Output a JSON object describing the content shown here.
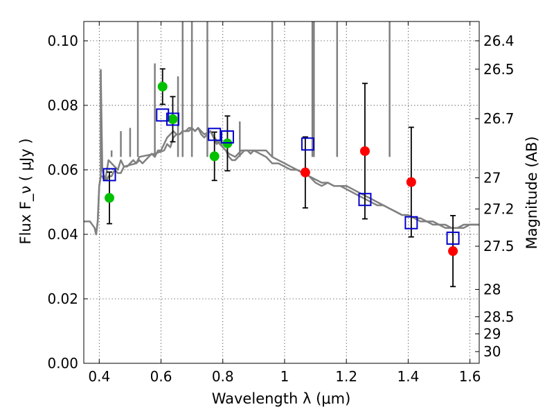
{
  "chart_data": {
    "type": "scatter",
    "xlabel": "Wavelength  λ (μm)",
    "ylabel": "Flux  F_ν  ( μJy )",
    "y2label": "Magnitude (AB)",
    "xlim": [
      0.35,
      1.63
    ],
    "ylim": [
      0.0,
      0.106
    ],
    "grid": true,
    "x_ticks": [
      {
        "value": 0.4,
        "label": "0.4"
      },
      {
        "value": 0.6,
        "label": "0.6"
      },
      {
        "value": 0.8,
        "label": "0.8"
      },
      {
        "value": 1.0,
        "label": "1"
      },
      {
        "value": 1.2,
        "label": "1.2"
      },
      {
        "value": 1.4,
        "label": "1.4"
      },
      {
        "value": 1.6,
        "label": "1.6"
      }
    ],
    "y_ticks": [
      {
        "value": 0.0,
        "label": "0.00"
      },
      {
        "value": 0.02,
        "label": "0.02"
      },
      {
        "value": 0.04,
        "label": "0.04"
      },
      {
        "value": 0.06,
        "label": "0.06"
      },
      {
        "value": 0.08,
        "label": "0.08"
      },
      {
        "value": 0.1,
        "label": "0.10"
      }
    ],
    "y2_ticks": [
      {
        "value": 26.4,
        "label": "26.4"
      },
      {
        "value": 26.5,
        "label": "26.5"
      },
      {
        "value": 26.7,
        "label": "26.7"
      },
      {
        "value": 27.0,
        "label": "27"
      },
      {
        "value": 27.2,
        "label": "27.2"
      },
      {
        "value": 27.5,
        "label": "27.5"
      },
      {
        "value": 28.0,
        "label": "28"
      },
      {
        "value": 28.5,
        "label": "28.5"
      },
      {
        "value": 29.0,
        "label": "29"
      },
      {
        "value": 30.0,
        "label": "30"
      }
    ],
    "series": [
      {
        "kind": "line",
        "color": "#808080",
        "x": [
          0.35,
          0.37,
          0.385,
          0.39,
          0.395,
          0.4,
          0.405,
          0.41,
          0.415,
          0.42,
          0.425,
          0.43,
          0.44,
          0.45,
          0.46,
          0.47,
          0.48,
          0.49,
          0.5,
          0.51,
          0.52,
          0.53,
          0.54,
          0.55,
          0.56,
          0.57,
          0.58,
          0.59,
          0.6,
          0.61,
          0.62,
          0.63,
          0.64,
          0.65,
          0.66,
          0.67,
          0.68,
          0.69,
          0.7,
          0.71,
          0.72,
          0.73,
          0.74,
          0.75,
          0.76,
          0.77,
          0.78,
          0.79,
          0.8,
          0.81,
          0.82,
          0.83,
          0.84,
          0.85,
          0.86,
          0.87,
          0.88,
          0.89,
          0.9,
          0.92,
          0.94,
          0.96,
          0.98,
          1.0,
          1.02,
          1.04,
          1.06,
          1.08,
          1.1,
          1.12,
          1.14,
          1.16,
          1.18,
          1.2,
          1.22,
          1.24,
          1.26,
          1.28,
          1.3,
          1.32,
          1.34,
          1.36,
          1.38,
          1.4,
          1.42,
          1.44,
          1.46,
          1.48,
          1.5,
          1.52,
          1.54,
          1.56,
          1.58,
          1.6,
          1.63
        ],
        "y": [
          0.044,
          0.044,
          0.042,
          0.04,
          0.044,
          0.055,
          0.058,
          0.058,
          0.057,
          0.058,
          0.057,
          0.058,
          0.058,
          0.06,
          0.059,
          0.059,
          0.061,
          0.061,
          0.062,
          0.063,
          0.062,
          0.063,
          0.062,
          0.063,
          0.064,
          0.065,
          0.064,
          0.066,
          0.066,
          0.068,
          0.07,
          0.071,
          0.072,
          0.071,
          0.071,
          0.072,
          0.072,
          0.073,
          0.073,
          0.072,
          0.073,
          0.071,
          0.07,
          0.071,
          0.072,
          0.07,
          0.068,
          0.069,
          0.067,
          0.066,
          0.064,
          0.063,
          0.063,
          0.064,
          0.065,
          0.066,
          0.066,
          0.065,
          0.066,
          0.065,
          0.064,
          0.062,
          0.062,
          0.061,
          0.06,
          0.06,
          0.059,
          0.058,
          0.056,
          0.055,
          0.056,
          0.055,
          0.055,
          0.054,
          0.053,
          0.052,
          0.051,
          0.05,
          0.049,
          0.049,
          0.048,
          0.047,
          0.046,
          0.046,
          0.045,
          0.044,
          0.044,
          0.043,
          0.043,
          0.042,
          0.042,
          0.042,
          0.042,
          0.043,
          0.043
        ]
      },
      {
        "kind": "line",
        "color": "#808080",
        "x": [
          0.385,
          0.39,
          0.395,
          0.4,
          0.405,
          0.405,
          0.41,
          0.415,
          0.42,
          0.43,
          0.44,
          0.45,
          0.46,
          0.47,
          0.48,
          0.52,
          0.53,
          0.58,
          0.61,
          0.62,
          0.63,
          0.64,
          0.65,
          0.66,
          0.67,
          0.68,
          0.69,
          0.7,
          0.71,
          0.72,
          0.73,
          0.74,
          0.76,
          0.78,
          0.8,
          0.82,
          0.84,
          0.86,
          0.88,
          0.9,
          0.92,
          0.94,
          0.96,
          0.98,
          1.0,
          1.02,
          1.04,
          1.06,
          1.08,
          1.1,
          1.12,
          1.14,
          1.16,
          1.18,
          1.2,
          1.22,
          1.24,
          1.26,
          1.28,
          1.3,
          1.32,
          1.34,
          1.36,
          1.38,
          1.4,
          1.42,
          1.44,
          1.46,
          1.48,
          1.5,
          1.52,
          1.54,
          1.56,
          1.58,
          1.6,
          1.63
        ],
        "y": [
          0.042,
          0.04,
          0.044,
          0.055,
          0.058,
          0.091,
          0.06,
          0.058,
          0.057,
          0.063,
          0.062,
          0.061,
          0.06,
          0.063,
          0.061,
          0.062,
          0.064,
          0.065,
          0.066,
          0.068,
          0.067,
          0.07,
          0.071,
          0.071,
          0.072,
          0.072,
          0.072,
          0.073,
          0.072,
          0.073,
          0.072,
          0.071,
          0.072,
          0.069,
          0.067,
          0.065,
          0.064,
          0.066,
          0.066,
          0.066,
          0.066,
          0.066,
          0.064,
          0.063,
          0.062,
          0.061,
          0.06,
          0.059,
          0.058,
          0.057,
          0.056,
          0.056,
          0.055,
          0.055,
          0.055,
          0.054,
          0.053,
          0.052,
          0.051,
          0.05,
          0.049,
          0.048,
          0.047,
          0.046,
          0.046,
          0.045,
          0.045,
          0.044,
          0.044,
          0.043,
          0.043,
          0.042,
          0.042,
          0.043,
          0.043,
          0.043
        ]
      },
      {
        "kind": "spikes",
        "color": "#808080",
        "x": [
          0.405,
          0.43,
          0.44,
          0.47,
          0.5,
          0.525,
          0.58,
          0.655,
          0.67,
          0.7,
          0.75,
          0.855,
          0.96,
          1.09,
          1.095,
          1.17,
          1.34
        ],
        "y": [
          0.091,
          0.064,
          0.066,
          0.072,
          0.073,
          0.106,
          0.093,
          0.089,
          0.106,
          0.106,
          0.106,
          0.075,
          0.106,
          0.106,
          0.106,
          0.106,
          0.106
        ]
      },
      {
        "kind": "scatter",
        "marker": "circle",
        "color": "#00c000",
        "x": [
          0.433,
          0.605,
          0.638,
          0.773,
          0.815
        ],
        "y": [
          0.0513,
          0.0858,
          0.0757,
          0.0642,
          0.0682
        ],
        "yerr": [
          0.008,
          0.0055,
          0.007,
          0.0075,
          0.0085
        ]
      },
      {
        "kind": "scatter",
        "marker": "circle",
        "color": "#ff0000",
        "x": [
          1.067,
          1.26,
          1.41,
          1.545
        ],
        "y": [
          0.0592,
          0.0658,
          0.0562,
          0.0348
        ],
        "yerr": [
          0.011,
          0.021,
          0.017,
          0.011
        ]
      },
      {
        "kind": "scatter",
        "marker": "square",
        "color": "#0000cc",
        "x": [
          0.433,
          0.605,
          0.638,
          0.773,
          0.815,
          1.075,
          1.26,
          1.41,
          1.545
        ],
        "y": [
          0.0585,
          0.077,
          0.0757,
          0.071,
          0.0702,
          0.068,
          0.0508,
          0.0436,
          0.0388
        ]
      }
    ]
  }
}
